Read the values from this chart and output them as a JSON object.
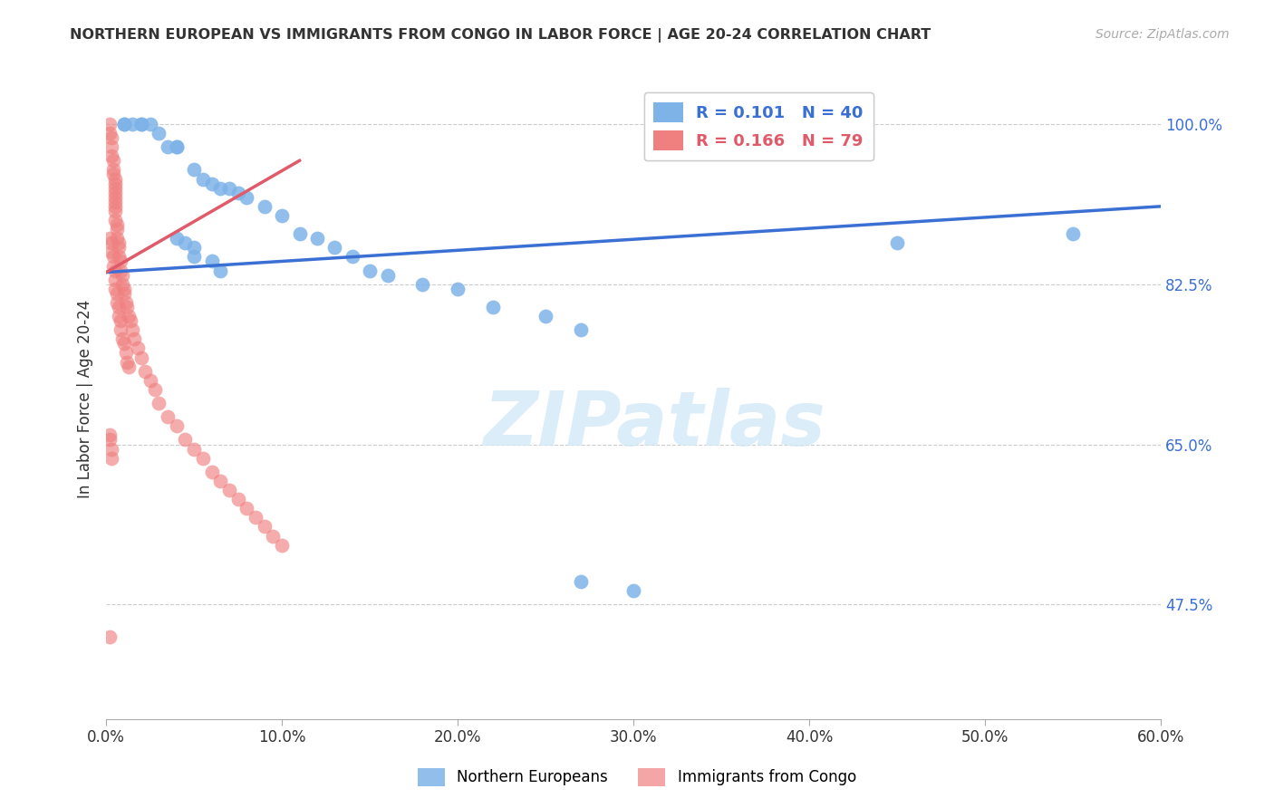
{
  "title": "NORTHERN EUROPEAN VS IMMIGRANTS FROM CONGO IN LABOR FORCE | AGE 20-24 CORRELATION CHART",
  "source": "Source: ZipAtlas.com",
  "ylabel": "In Labor Force | Age 20-24",
  "x_ticks": [
    "0.0%",
    "10.0%",
    "20.0%",
    "30.0%",
    "40.0%",
    "50.0%",
    "60.0%"
  ],
  "x_tick_vals": [
    0.0,
    0.1,
    0.2,
    0.3,
    0.4,
    0.5,
    0.6
  ],
  "y_ticks_right": [
    "100.0%",
    "82.5%",
    "65.0%",
    "47.5%"
  ],
  "y_tick_vals": [
    1.0,
    0.825,
    0.65,
    0.475
  ],
  "xlim": [
    0.0,
    0.6
  ],
  "ylim": [
    0.35,
    1.05
  ],
  "blue_color": "#7EB3E8",
  "pink_color": "#F08080",
  "blue_line_color": "#3A6FD4",
  "pink_line_color": "#E05A6A",
  "legend_blue_label": "R = 0.101   N = 40",
  "legend_pink_label": "R = 0.166   N = 79",
  "legend_label_ne": "Northern Europeans",
  "legend_label_congo": "Immigrants from Congo",
  "watermark": "ZIPatlas",
  "blue_scatter_x": [
    0.01,
    0.01,
    0.015,
    0.02,
    0.02,
    0.025,
    0.03,
    0.035,
    0.04,
    0.04,
    0.05,
    0.055,
    0.06,
    0.065,
    0.07,
    0.075,
    0.08,
    0.09,
    0.1,
    0.11,
    0.12,
    0.13,
    0.14,
    0.15,
    0.16,
    0.18,
    0.2,
    0.22,
    0.25,
    0.27,
    0.04,
    0.045,
    0.05,
    0.05,
    0.06,
    0.065,
    0.27,
    0.3,
    0.45,
    0.55
  ],
  "blue_scatter_y": [
    1.0,
    1.0,
    1.0,
    1.0,
    1.0,
    1.0,
    0.99,
    0.975,
    0.975,
    0.975,
    0.95,
    0.94,
    0.935,
    0.93,
    0.93,
    0.925,
    0.92,
    0.91,
    0.9,
    0.88,
    0.875,
    0.865,
    0.855,
    0.84,
    0.835,
    0.825,
    0.82,
    0.8,
    0.79,
    0.775,
    0.875,
    0.87,
    0.865,
    0.855,
    0.85,
    0.84,
    0.5,
    0.49,
    0.87,
    0.88
  ],
  "pink_scatter_x": [
    0.002,
    0.002,
    0.003,
    0.003,
    0.003,
    0.004,
    0.004,
    0.004,
    0.005,
    0.005,
    0.005,
    0.005,
    0.005,
    0.005,
    0.005,
    0.005,
    0.005,
    0.006,
    0.006,
    0.006,
    0.007,
    0.007,
    0.007,
    0.008,
    0.008,
    0.009,
    0.009,
    0.01,
    0.01,
    0.011,
    0.012,
    0.013,
    0.014,
    0.015,
    0.016,
    0.018,
    0.02,
    0.022,
    0.025,
    0.028,
    0.03,
    0.035,
    0.04,
    0.045,
    0.05,
    0.055,
    0.06,
    0.065,
    0.07,
    0.075,
    0.08,
    0.085,
    0.09,
    0.095,
    0.1,
    0.002,
    0.003,
    0.003,
    0.004,
    0.004,
    0.005,
    0.005,
    0.005,
    0.006,
    0.006,
    0.007,
    0.007,
    0.008,
    0.008,
    0.009,
    0.01,
    0.011,
    0.012,
    0.013,
    0.002,
    0.002,
    0.003,
    0.003,
    0.002
  ],
  "pink_scatter_y": [
    1.0,
    0.99,
    0.985,
    0.975,
    0.965,
    0.96,
    0.95,
    0.945,
    0.94,
    0.935,
    0.93,
    0.925,
    0.92,
    0.915,
    0.91,
    0.905,
    0.895,
    0.89,
    0.885,
    0.875,
    0.87,
    0.865,
    0.855,
    0.85,
    0.84,
    0.835,
    0.825,
    0.82,
    0.815,
    0.805,
    0.8,
    0.79,
    0.785,
    0.775,
    0.765,
    0.755,
    0.745,
    0.73,
    0.72,
    0.71,
    0.695,
    0.68,
    0.67,
    0.655,
    0.645,
    0.635,
    0.62,
    0.61,
    0.6,
    0.59,
    0.58,
    0.57,
    0.56,
    0.55,
    0.54,
    0.875,
    0.87,
    0.86,
    0.855,
    0.845,
    0.84,
    0.83,
    0.82,
    0.815,
    0.805,
    0.8,
    0.79,
    0.785,
    0.775,
    0.765,
    0.76,
    0.75,
    0.74,
    0.735,
    0.66,
    0.655,
    0.645,
    0.635,
    0.44
  ],
  "blue_line_x": [
    0.0,
    0.6
  ],
  "blue_line_y": [
    0.838,
    0.91
  ],
  "pink_line_x": [
    0.0,
    0.11
  ],
  "pink_line_y": [
    0.838,
    0.96
  ]
}
